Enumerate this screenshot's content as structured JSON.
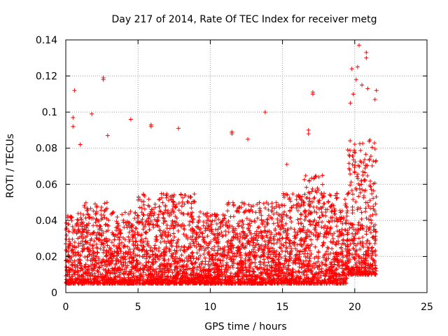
{
  "chart_data": {
    "type": "scatter",
    "title": "Day 217 of 2014, Rate Of TEC Index for receiver metg",
    "xlabel": "GPS time / hours",
    "ylabel": "ROTI / TECUs",
    "xlim": [
      0,
      25
    ],
    "ylim": [
      0,
      0.14
    ],
    "x_ticks": [
      "0",
      "5",
      "10",
      "15",
      "20",
      "25"
    ],
    "y_ticks": [
      "0",
      "0.02",
      "0.04",
      "0.06",
      "0.08",
      "0.1",
      "0.12",
      "0.14"
    ],
    "grid": true,
    "legend": "none",
    "marker": "+",
    "color": "#ff0000",
    "density_profile": [
      {
        "x_start": 0.0,
        "x_end": 1.0,
        "y_low": 0.005,
        "y_high": 0.045
      },
      {
        "x_start": 1.0,
        "x_end": 2.0,
        "y_low": 0.005,
        "y_high": 0.05
      },
      {
        "x_start": 2.0,
        "x_end": 3.0,
        "y_low": 0.005,
        "y_high": 0.05
      },
      {
        "x_start": 3.0,
        "x_end": 5.0,
        "y_low": 0.005,
        "y_high": 0.045
      },
      {
        "x_start": 5.0,
        "x_end": 7.0,
        "y_low": 0.005,
        "y_high": 0.055
      },
      {
        "x_start": 7.0,
        "x_end": 9.0,
        "y_low": 0.005,
        "y_high": 0.055
      },
      {
        "x_start": 9.0,
        "x_end": 11.0,
        "y_low": 0.005,
        "y_high": 0.045
      },
      {
        "x_start": 11.0,
        "x_end": 13.0,
        "y_low": 0.005,
        "y_high": 0.05
      },
      {
        "x_start": 13.0,
        "x_end": 15.0,
        "y_low": 0.005,
        "y_high": 0.05
      },
      {
        "x_start": 15.0,
        "x_end": 16.5,
        "y_low": 0.005,
        "y_high": 0.055
      },
      {
        "x_start": 16.5,
        "x_end": 18.0,
        "y_low": 0.005,
        "y_high": 0.065
      },
      {
        "x_start": 18.0,
        "x_end": 19.5,
        "y_low": 0.005,
        "y_high": 0.055
      },
      {
        "x_start": 19.5,
        "x_end": 21.5,
        "y_low": 0.01,
        "y_high": 0.085
      }
    ],
    "outliers": [
      {
        "x": 0.6,
        "y": 0.112
      },
      {
        "x": 0.5,
        "y": 0.097
      },
      {
        "x": 0.5,
        "y": 0.092
      },
      {
        "x": 1.0,
        "y": 0.082
      },
      {
        "x": 1.8,
        "y": 0.099
      },
      {
        "x": 2.6,
        "y": 0.118
      },
      {
        "x": 2.6,
        "y": 0.119
      },
      {
        "x": 2.9,
        "y": 0.087
      },
      {
        "x": 4.5,
        "y": 0.096
      },
      {
        "x": 5.9,
        "y": 0.093
      },
      {
        "x": 5.9,
        "y": 0.092
      },
      {
        "x": 7.8,
        "y": 0.091
      },
      {
        "x": 11.5,
        "y": 0.088
      },
      {
        "x": 11.5,
        "y": 0.089
      },
      {
        "x": 12.6,
        "y": 0.085
      },
      {
        "x": 13.8,
        "y": 0.1
      },
      {
        "x": 17.1,
        "y": 0.111
      },
      {
        "x": 17.1,
        "y": 0.11
      },
      {
        "x": 16.8,
        "y": 0.09
      },
      {
        "x": 16.8,
        "y": 0.088
      },
      {
        "x": 15.3,
        "y": 0.071
      },
      {
        "x": 19.8,
        "y": 0.124
      },
      {
        "x": 20.3,
        "y": 0.137
      },
      {
        "x": 20.2,
        "y": 0.125
      },
      {
        "x": 20.8,
        "y": 0.133
      },
      {
        "x": 20.8,
        "y": 0.13
      },
      {
        "x": 20.1,
        "y": 0.118
      },
      {
        "x": 19.7,
        "y": 0.105
      },
      {
        "x": 20.9,
        "y": 0.113
      },
      {
        "x": 21.5,
        "y": 0.112
      },
      {
        "x": 21.4,
        "y": 0.107
      },
      {
        "x": 19.9,
        "y": 0.11
      },
      {
        "x": 20.5,
        "y": 0.115
      }
    ]
  }
}
